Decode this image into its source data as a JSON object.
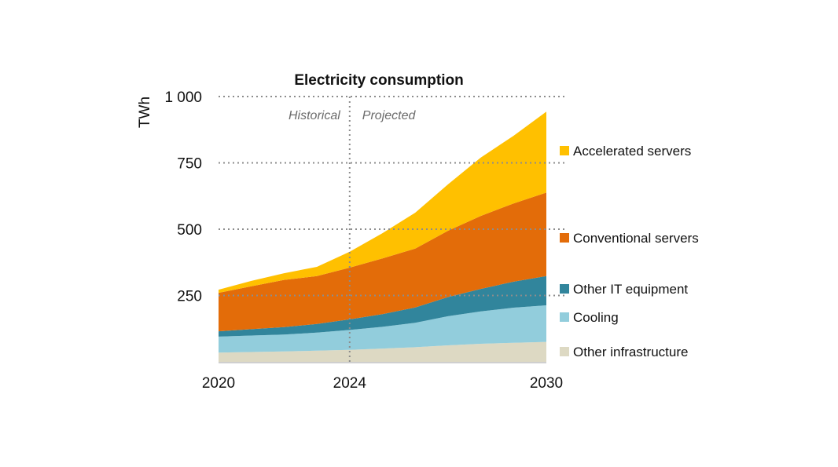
{
  "chart_data": {
    "type": "area",
    "stacked": true,
    "title": "Electricity consumption",
    "ylabel": "TWh",
    "xlabel": "",
    "xlim": [
      2020,
      2030
    ],
    "ylim": [
      0,
      1000
    ],
    "x_ticks": [
      {
        "value": 2020,
        "label": "2020"
      },
      {
        "value": 2024,
        "label": "2024"
      },
      {
        "value": 2030,
        "label": "2030"
      }
    ],
    "y_ticks": [
      {
        "value": 250,
        "label": "250"
      },
      {
        "value": 500,
        "label": "500"
      },
      {
        "value": 750,
        "label": "750"
      },
      {
        "value": 1000,
        "label": "1 000"
      }
    ],
    "grid": true,
    "divider": {
      "x": 2024,
      "left_label": "Historical",
      "right_label": "Projected"
    },
    "legend_position": "right",
    "x": [
      2020,
      2021,
      2022,
      2023,
      2024,
      2025,
      2026,
      2027,
      2028,
      2029,
      2030
    ],
    "series": [
      {
        "name": "Other infrastructure",
        "color": "#ddd9c3",
        "values": [
          35,
          37,
          39,
          42,
          45,
          50,
          55,
          62,
          68,
          72,
          75
        ]
      },
      {
        "name": "Cooling",
        "color": "#92cddc",
        "values": [
          60,
          62,
          64,
          68,
          75,
          82,
          92,
          110,
          122,
          132,
          138
        ]
      },
      {
        "name": "Other IT equipment",
        "color": "#31859c",
        "values": [
          20,
          24,
          28,
          33,
          40,
          48,
          58,
          72,
          85,
          98,
          110
        ]
      },
      {
        "name": "Conventional servers",
        "color": "#e36c09",
        "values": [
          145,
          162,
          178,
          180,
          195,
          210,
          222,
          250,
          275,
          295,
          315
        ]
      },
      {
        "name": "Accelerated servers",
        "color": "#ffc000",
        "values": [
          12,
          20,
          25,
          35,
          60,
          95,
          135,
          175,
          220,
          255,
          305
        ]
      }
    ]
  }
}
